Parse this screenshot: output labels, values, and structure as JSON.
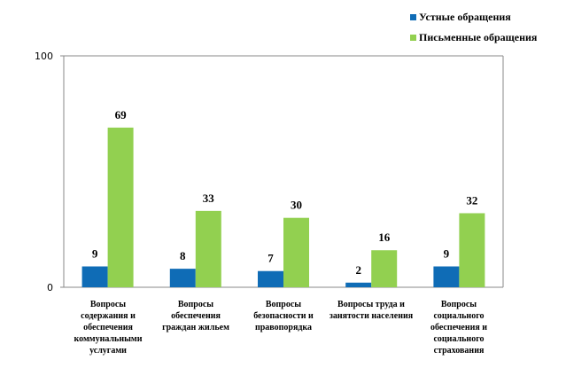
{
  "chart_data": {
    "type": "bar",
    "categories": [
      "Вопросы содержания и обеспечения коммунальными услугами",
      "Вопросы обеспечения граждан жильем",
      "Вопросы безопасности и правопорядка",
      "Вопросы труда и занятости населения",
      "Вопросы социального обеспечения и социального страхования"
    ],
    "series": [
      {
        "name": "Устные обращения",
        "values": [
          9,
          8,
          7,
          2,
          9
        ],
        "color": "#0f6cb6"
      },
      {
        "name": "Письменные обращения",
        "values": [
          69,
          33,
          30,
          16,
          32
        ],
        "color": "#92d050"
      }
    ],
    "ylim": [
      0,
      100
    ],
    "yticks": [
      "0",
      "100"
    ],
    "grid": false,
    "legend": "top-right",
    "data_labels": true
  }
}
